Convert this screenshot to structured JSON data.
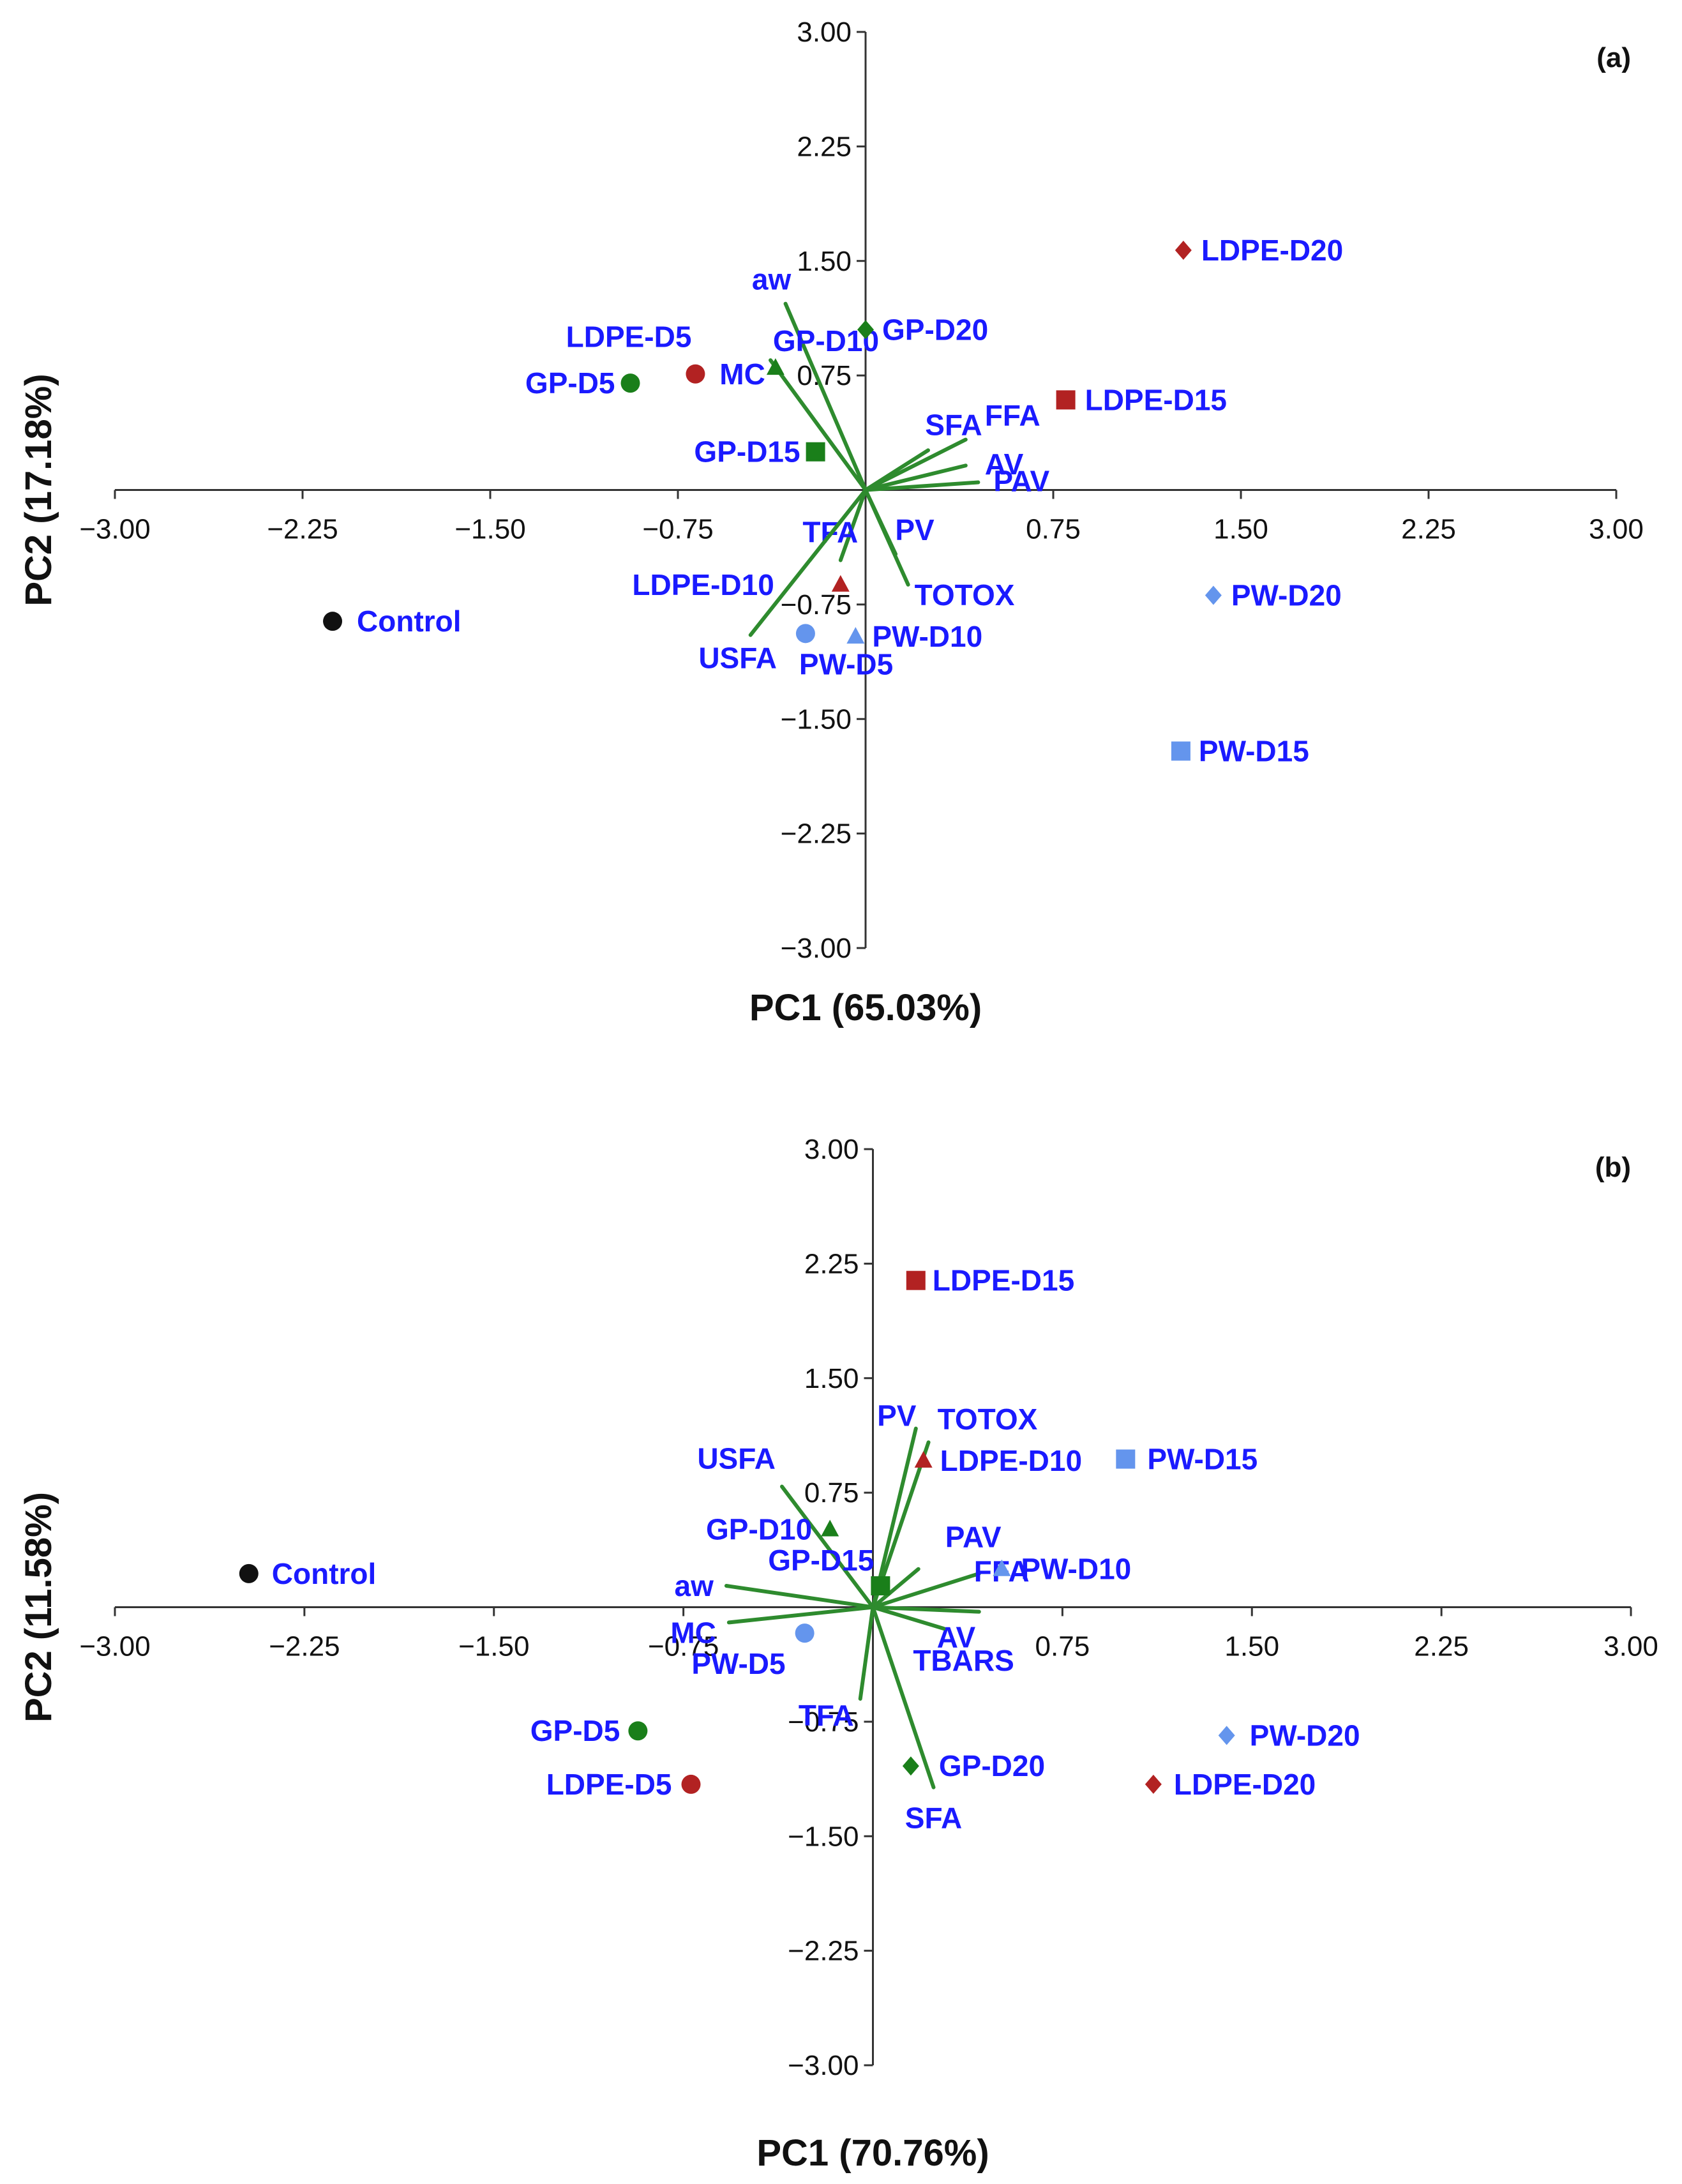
{
  "colors": {
    "control": "#111111",
    "gp": "#1a7f1a",
    "ldpe": "#b22222",
    "pw": "#6495ed",
    "vector": "#2e8b2e",
    "label": "#1a1aff",
    "axis": "#333333"
  },
  "chart_data": [
    {
      "type": "scatter",
      "subtype": "biplot",
      "panel_label": "(a)",
      "xlabel": "PC1 (65.03%)",
      "ylabel": "PC2 (17.18%)",
      "xlim": [
        -3.0,
        3.0
      ],
      "ylim": [
        -3.0,
        3.0
      ],
      "x_ticks": [
        "−3.00",
        "−2.25",
        "−1.50",
        "−0.75",
        "0.75",
        "1.50",
        "2.25",
        "3.00"
      ],
      "y_ticks": [
        "3.00",
        "2.25",
        "1.50",
        "0.75",
        "−0.75",
        "−1.50",
        "−2.25",
        "−3.00"
      ],
      "points": [
        {
          "label": "Control",
          "group": "control",
          "marker": "circle",
          "x": -2.13,
          "y": -0.86
        },
        {
          "label": "GP-D5",
          "group": "gp",
          "marker": "circle",
          "x": -0.94,
          "y": 0.7
        },
        {
          "label": "LDPE-D5",
          "group": "ldpe",
          "marker": "circle",
          "x": -0.68,
          "y": 0.76
        },
        {
          "label": "PW-D5",
          "group": "pw",
          "marker": "circle",
          "x": -0.24,
          "y": -0.94
        },
        {
          "label": "GP-D10",
          "group": "gp",
          "marker": "triangle",
          "x": -0.36,
          "y": 0.8
        },
        {
          "label": "LDPE-D10",
          "group": "ldpe",
          "marker": "triangle",
          "x": -0.1,
          "y": -0.62
        },
        {
          "label": "PW-D10",
          "group": "pw",
          "marker": "triangle",
          "x": -0.04,
          "y": -0.96
        },
        {
          "label": "GP-D15",
          "group": "gp",
          "marker": "square",
          "x": -0.2,
          "y": 0.25
        },
        {
          "label": "LDPE-D15",
          "group": "ldpe",
          "marker": "square",
          "x": 0.8,
          "y": 0.59
        },
        {
          "label": "PW-D15",
          "group": "pw",
          "marker": "square",
          "x": 1.26,
          "y": -1.71
        },
        {
          "label": "GP-D20",
          "group": "gp",
          "marker": "diamond",
          "x": 0.0,
          "y": 1.05
        },
        {
          "label": "LDPE-D20",
          "group": "ldpe",
          "marker": "diamond",
          "x": 1.27,
          "y": 1.57
        },
        {
          "label": "PW-D20",
          "group": "pw",
          "marker": "diamond",
          "x": 1.39,
          "y": -0.69
        }
      ],
      "vectors": [
        {
          "label": "aw",
          "x": -0.32,
          "y": 1.22
        },
        {
          "label": "MC",
          "x": -0.38,
          "y": 0.85
        },
        {
          "label": "SFA",
          "x": 0.25,
          "y": 0.26
        },
        {
          "label": "FFA",
          "x": 0.4,
          "y": 0.33
        },
        {
          "label": "AV",
          "x": 0.4,
          "y": 0.16
        },
        {
          "label": "PAV",
          "x": 0.45,
          "y": 0.05
        },
        {
          "label": "PV",
          "x": 0.12,
          "y": -0.42
        },
        {
          "label": "TOTOX",
          "x": 0.17,
          "y": -0.62
        },
        {
          "label": "TFA",
          "x": -0.1,
          "y": -0.46
        },
        {
          "label": "USFA",
          "x": -0.46,
          "y": -0.95
        }
      ]
    },
    {
      "type": "scatter",
      "subtype": "biplot",
      "panel_label": "(b)",
      "xlabel": "PC1 (70.76%)",
      "ylabel": "PC2 (11.58%)",
      "xlim": [
        -3.0,
        3.0
      ],
      "ylim": [
        -3.0,
        3.0
      ],
      "x_ticks": [
        "−3.00",
        "−2.25",
        "−1.50",
        "−0.75",
        "0.75",
        "1.50",
        "2.25",
        "3.00"
      ],
      "y_ticks": [
        "3.00",
        "2.25",
        "1.50",
        "0.75",
        "−0.75",
        "−1.50",
        "−2.25",
        "−3.00"
      ],
      "points": [
        {
          "label": "Control",
          "group": "control",
          "marker": "circle",
          "x": -2.47,
          "y": 0.22
        },
        {
          "label": "GP-D5",
          "group": "gp",
          "marker": "circle",
          "x": -0.93,
          "y": -0.81
        },
        {
          "label": "LDPE-D5",
          "group": "ldpe",
          "marker": "circle",
          "x": -0.72,
          "y": -1.16
        },
        {
          "label": "PW-D5",
          "group": "pw",
          "marker": "circle",
          "x": -0.27,
          "y": -0.17
        },
        {
          "label": "GP-D10",
          "group": "gp",
          "marker": "triangle",
          "x": -0.17,
          "y": 0.51
        },
        {
          "label": "LDPE-D10",
          "group": "ldpe",
          "marker": "triangle",
          "x": 0.2,
          "y": 0.96
        },
        {
          "label": "PW-D10",
          "group": "pw",
          "marker": "triangle",
          "x": 0.51,
          "y": 0.25
        },
        {
          "label": "GP-D15",
          "group": "gp",
          "marker": "square",
          "x": 0.03,
          "y": 0.14
        },
        {
          "label": "LDPE-D15",
          "group": "ldpe",
          "marker": "square",
          "x": 0.17,
          "y": 2.14
        },
        {
          "label": "PW-D15",
          "group": "pw",
          "marker": "square",
          "x": 1.0,
          "y": 0.97
        },
        {
          "label": "GP-D20",
          "group": "gp",
          "marker": "diamond",
          "x": 0.15,
          "y": -1.04
        },
        {
          "label": "LDPE-D20",
          "group": "ldpe",
          "marker": "diamond",
          "x": 1.11,
          "y": -1.16
        },
        {
          "label": "PW-D20",
          "group": "pw",
          "marker": "diamond",
          "x": 1.4,
          "y": -0.84
        }
      ],
      "vectors": [
        {
          "label": "PV",
          "x": 0.17,
          "y": 1.17
        },
        {
          "label": "TOTOX",
          "x": 0.22,
          "y": 1.08
        },
        {
          "label": "USFA",
          "x": -0.36,
          "y": 0.79
        },
        {
          "label": "PAV",
          "x": 0.18,
          "y": 0.25
        },
        {
          "label": "FFA",
          "x": 0.42,
          "y": 0.22
        },
        {
          "label": "aw",
          "x": -0.58,
          "y": 0.14
        },
        {
          "label": "MC",
          "x": -0.57,
          "y": -0.1
        },
        {
          "label": "AV",
          "x": 0.42,
          "y": -0.03
        },
        {
          "label": "TBARS",
          "x": 0.28,
          "y": -0.14
        },
        {
          "label": "TFA",
          "x": -0.05,
          "y": -0.6
        },
        {
          "label": "SFA",
          "x": 0.24,
          "y": -1.18
        }
      ]
    }
  ]
}
